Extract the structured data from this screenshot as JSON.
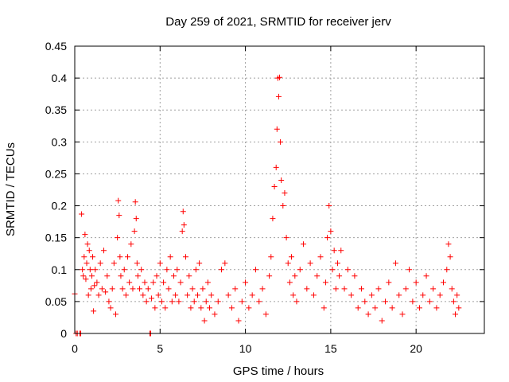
{
  "chart_data": {
    "type": "scatter",
    "title": "Day 259 of 2021, SRMTID for receiver jerv",
    "xlabel": "GPS time / hours",
    "ylabel": "SRMTID / TECUs",
    "xlim": [
      0,
      24
    ],
    "ylim": [
      0,
      0.45
    ],
    "xticks": [
      0,
      5,
      10,
      15,
      20
    ],
    "yticks": [
      0,
      0.05,
      0.1,
      0.15,
      0.2,
      0.25,
      0.3,
      0.35,
      0.4,
      0.45
    ],
    "xtick_labels": [
      "0",
      "5",
      "10",
      "15",
      "20"
    ],
    "ytick_labels": [
      "0",
      "0.05",
      "0.1",
      "0.15",
      "0.2",
      "0.25",
      "0.3",
      "0.35",
      "0.4",
      "0.45"
    ],
    "grid": true,
    "marker": "+",
    "color": "#ff0000",
    "series": [
      {
        "name": "SRMTID",
        "points": [
          [
            0.0,
            0.062
          ],
          [
            0.08,
            0.0
          ],
          [
            0.15,
            0.0
          ],
          [
            0.3,
            0.0
          ],
          [
            0.35,
            0.0
          ],
          [
            0.4,
            0.187
          ],
          [
            0.45,
            0.1
          ],
          [
            0.5,
            0.09
          ],
          [
            0.55,
            0.12
          ],
          [
            0.6,
            0.155
          ],
          [
            0.65,
            0.085
          ],
          [
            0.7,
            0.11
          ],
          [
            0.75,
            0.14
          ],
          [
            0.8,
            0.06
          ],
          [
            0.85,
            0.13
          ],
          [
            0.9,
            0.1
          ],
          [
            0.95,
            0.07
          ],
          [
            1.0,
            0.09
          ],
          [
            1.05,
            0.12
          ],
          [
            1.1,
            0.035
          ],
          [
            1.15,
            0.075
          ],
          [
            1.2,
            0.1
          ],
          [
            1.3,
            0.08
          ],
          [
            1.4,
            0.06
          ],
          [
            1.5,
            0.11
          ],
          [
            1.6,
            0.07
          ],
          [
            1.7,
            0.13
          ],
          [
            1.8,
            0.065
          ],
          [
            1.9,
            0.09
          ],
          [
            2.0,
            0.05
          ],
          [
            2.1,
            0.04
          ],
          [
            2.2,
            0.07
          ],
          [
            2.3,
            0.11
          ],
          [
            2.4,
            0.03
          ],
          [
            2.5,
            0.15
          ],
          [
            2.55,
            0.208
          ],
          [
            2.6,
            0.185
          ],
          [
            2.65,
            0.12
          ],
          [
            2.7,
            0.09
          ],
          [
            2.8,
            0.07
          ],
          [
            2.9,
            0.1
          ],
          [
            3.0,
            0.06
          ],
          [
            3.1,
            0.12
          ],
          [
            3.2,
            0.08
          ],
          [
            3.3,
            0.14
          ],
          [
            3.4,
            0.07
          ],
          [
            3.5,
            0.16
          ],
          [
            3.55,
            0.206
          ],
          [
            3.6,
            0.18
          ],
          [
            3.65,
            0.11
          ],
          [
            3.7,
            0.09
          ],
          [
            3.8,
            0.07
          ],
          [
            3.9,
            0.1
          ],
          [
            4.0,
            0.06
          ],
          [
            4.1,
            0.08
          ],
          [
            4.2,
            0.05
          ],
          [
            4.3,
            0.07
          ],
          [
            4.4,
            0.0
          ],
          [
            4.45,
            0.0
          ],
          [
            4.5,
            0.055
          ],
          [
            4.6,
            0.08
          ],
          [
            4.7,
            0.04
          ],
          [
            4.8,
            0.09
          ],
          [
            4.9,
            0.06
          ],
          [
            5.0,
            0.11
          ],
          [
            5.1,
            0.05
          ],
          [
            5.2,
            0.08
          ],
          [
            5.3,
            0.04
          ],
          [
            5.4,
            0.1
          ],
          [
            5.5,
            0.07
          ],
          [
            5.6,
            0.12
          ],
          [
            5.7,
            0.05
          ],
          [
            5.8,
            0.09
          ],
          [
            5.9,
            0.06
          ],
          [
            6.0,
            0.1
          ],
          [
            6.1,
            0.05
          ],
          [
            6.2,
            0.08
          ],
          [
            6.3,
            0.16
          ],
          [
            6.35,
            0.191
          ],
          [
            6.4,
            0.17
          ],
          [
            6.5,
            0.12
          ],
          [
            6.6,
            0.06
          ],
          [
            6.7,
            0.09
          ],
          [
            6.8,
            0.04
          ],
          [
            6.9,
            0.07
          ],
          [
            7.0,
            0.05
          ],
          [
            7.1,
            0.1
          ],
          [
            7.2,
            0.06
          ],
          [
            7.3,
            0.11
          ],
          [
            7.4,
            0.04
          ],
          [
            7.5,
            0.07
          ],
          [
            7.6,
            0.02
          ],
          [
            7.7,
            0.05
          ],
          [
            7.8,
            0.08
          ],
          [
            7.9,
            0.04
          ],
          [
            8.0,
            0.06
          ],
          [
            8.2,
            0.03
          ],
          [
            8.4,
            0.05
          ],
          [
            8.6,
            0.1
          ],
          [
            8.8,
            0.11
          ],
          [
            9.0,
            0.06
          ],
          [
            9.2,
            0.04
          ],
          [
            9.4,
            0.07
          ],
          [
            9.6,
            0.02
          ],
          [
            9.8,
            0.05
          ],
          [
            10.0,
            0.08
          ],
          [
            10.2,
            0.04
          ],
          [
            10.4,
            0.06
          ],
          [
            10.6,
            0.1
          ],
          [
            10.8,
            0.05
          ],
          [
            11.0,
            0.07
          ],
          [
            11.2,
            0.03
          ],
          [
            11.4,
            0.09
          ],
          [
            11.5,
            0.12
          ],
          [
            11.6,
            0.18
          ],
          [
            11.7,
            0.23
          ],
          [
            11.8,
            0.26
          ],
          [
            11.85,
            0.32
          ],
          [
            11.9,
            0.4
          ],
          [
            11.95,
            0.371
          ],
          [
            12.0,
            0.401
          ],
          [
            12.05,
            0.3
          ],
          [
            12.1,
            0.24
          ],
          [
            12.2,
            0.2
          ],
          [
            12.3,
            0.22
          ],
          [
            12.4,
            0.15
          ],
          [
            12.5,
            0.11
          ],
          [
            12.6,
            0.08
          ],
          [
            12.7,
            0.12
          ],
          [
            12.8,
            0.06
          ],
          [
            12.9,
            0.09
          ],
          [
            13.0,
            0.05
          ],
          [
            13.2,
            0.1
          ],
          [
            13.4,
            0.14
          ],
          [
            13.6,
            0.07
          ],
          [
            13.8,
            0.11
          ],
          [
            14.0,
            0.06
          ],
          [
            14.2,
            0.09
          ],
          [
            14.4,
            0.12
          ],
          [
            14.6,
            0.04
          ],
          [
            14.7,
            0.08
          ],
          [
            14.8,
            0.15
          ],
          [
            14.9,
            0.2
          ],
          [
            15.0,
            0.16
          ],
          [
            15.1,
            0.1
          ],
          [
            15.2,
            0.13
          ],
          [
            15.3,
            0.07
          ],
          [
            15.4,
            0.11
          ],
          [
            15.5,
            0.09
          ],
          [
            15.6,
            0.13
          ],
          [
            15.8,
            0.07
          ],
          [
            16.0,
            0.1
          ],
          [
            16.2,
            0.06
          ],
          [
            16.4,
            0.09
          ],
          [
            16.6,
            0.04
          ],
          [
            16.8,
            0.07
          ],
          [
            17.0,
            0.05
          ],
          [
            17.2,
            0.03
          ],
          [
            17.4,
            0.06
          ],
          [
            17.6,
            0.04
          ],
          [
            17.8,
            0.07
          ],
          [
            18.0,
            0.02
          ],
          [
            18.2,
            0.05
          ],
          [
            18.4,
            0.08
          ],
          [
            18.6,
            0.04
          ],
          [
            18.8,
            0.11
          ],
          [
            19.0,
            0.06
          ],
          [
            19.2,
            0.03
          ],
          [
            19.4,
            0.07
          ],
          [
            19.6,
            0.1
          ],
          [
            19.8,
            0.05
          ],
          [
            20.0,
            0.08
          ],
          [
            20.2,
            0.04
          ],
          [
            20.4,
            0.06
          ],
          [
            20.6,
            0.09
          ],
          [
            20.8,
            0.05
          ],
          [
            21.0,
            0.07
          ],
          [
            21.2,
            0.04
          ],
          [
            21.4,
            0.06
          ],
          [
            21.6,
            0.08
          ],
          [
            21.8,
            0.1
          ],
          [
            21.9,
            0.14
          ],
          [
            22.0,
            0.12
          ],
          [
            22.1,
            0.07
          ],
          [
            22.2,
            0.05
          ],
          [
            22.3,
            0.03
          ],
          [
            22.4,
            0.06
          ],
          [
            22.5,
            0.04
          ]
        ]
      }
    ]
  }
}
